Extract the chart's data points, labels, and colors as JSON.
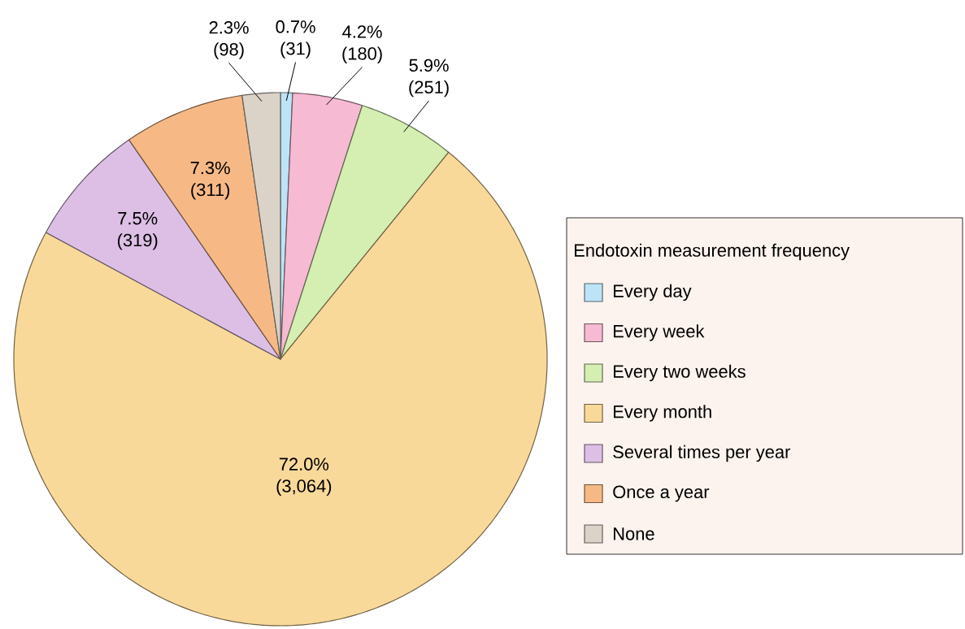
{
  "chart_data": {
    "type": "pie",
    "categories": [
      "Every day",
      "Every week",
      "Every two weeks",
      "Every month",
      "Several times per year",
      "Once a year",
      "None"
    ],
    "values": [
      31,
      180,
      251,
      3064,
      319,
      311,
      98
    ],
    "value_labels": [
      "0.7% (31)",
      "4.2% (180)",
      "5.9% (251)",
      "72.0% (3,064)",
      "7.5% (319)",
      "7.3% (311)",
      "2.3% (98)"
    ],
    "colors": [
      "#bde3f7",
      "#f6bad2",
      "#d5eeb2",
      "#f9d99a",
      "#ddbfe6",
      "#f6b986",
      "#dcd3c8"
    ],
    "legend_title": "Endotoxin measurement frequency",
    "legend": "right"
  }
}
